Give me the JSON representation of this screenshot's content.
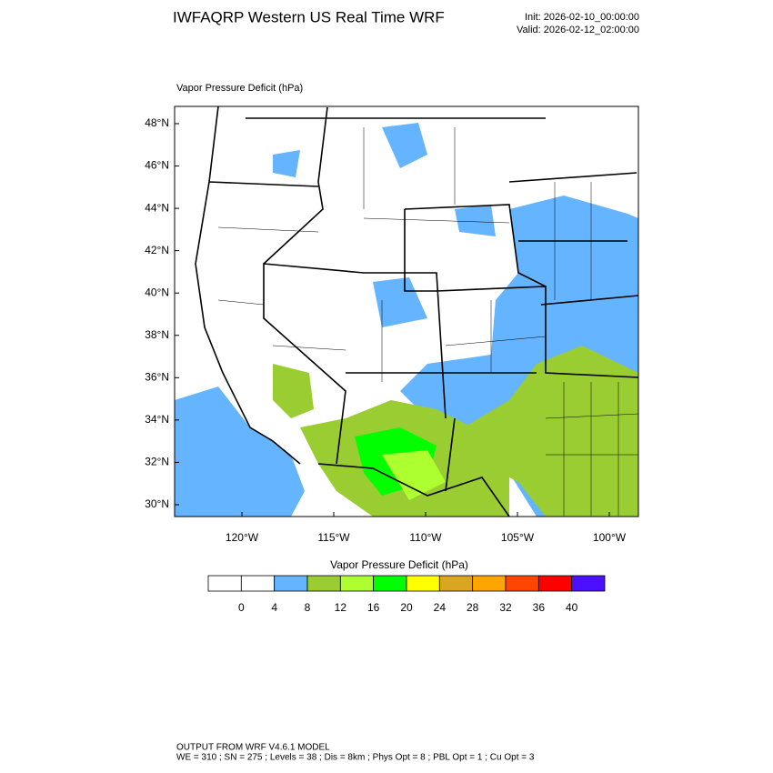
{
  "header": {
    "title": "IWFAQRP Western US Real Time WRF",
    "init": "Init: 2026-02-10_00:00:00",
    "valid": "Valid: 2026-02-12_02:00:00"
  },
  "map": {
    "label": "Vapor Pressure Deficit   (hPa)",
    "lat_ticks": [
      {
        "value": 48,
        "label": "48°N"
      },
      {
        "value": 46,
        "label": "46°N"
      },
      {
        "value": 44,
        "label": "44°N"
      },
      {
        "value": 42,
        "label": "42°N"
      },
      {
        "value": 40,
        "label": "40°N"
      },
      {
        "value": 38,
        "label": "38°N"
      },
      {
        "value": 36,
        "label": "36°N"
      },
      {
        "value": 34,
        "label": "34°N"
      },
      {
        "value": 32,
        "label": "32°N"
      },
      {
        "value": 30,
        "label": "30°N"
      }
    ],
    "lon_ticks": [
      {
        "value": -120,
        "label": "120°W"
      },
      {
        "value": -115,
        "label": "115°W"
      },
      {
        "value": -110,
        "label": "110°W"
      },
      {
        "value": -105,
        "label": "105°W"
      },
      {
        "value": -100,
        "label": "100°W"
      }
    ]
  },
  "colorbar": {
    "title": "Vapor Pressure Deficit  (hPa)",
    "levels": [
      0,
      4,
      8,
      12,
      16,
      20,
      24,
      28,
      32,
      36,
      40
    ],
    "colors": [
      "#ffffff",
      "#ffffff",
      "#64b4ff",
      "#9acd32",
      "#adff2f",
      "#00ff00",
      "#ffff00",
      "#daa520",
      "#ffa500",
      "#ff4500",
      "#ff0000",
      "#4b10ff"
    ]
  },
  "footer": {
    "line1": "OUTPUT FROM WRF V4.6.1 MODEL",
    "line2": "WE = 310 ; SN = 275 ; Levels = 38 ; Dis = 8km ; Phys Opt = 8 ; PBL Opt = 1 ; Cu Opt = 3"
  }
}
